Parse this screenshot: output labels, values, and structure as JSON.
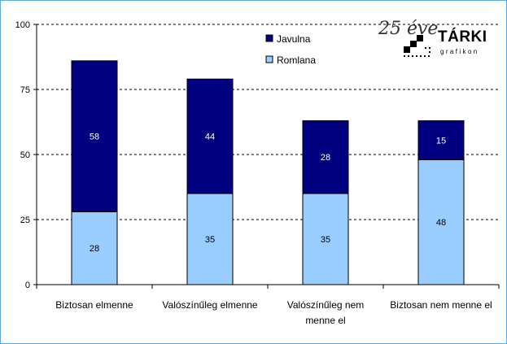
{
  "chart_data": {
    "type": "bar",
    "stacked": true,
    "categories": [
      [
        "Biztosan elmenne"
      ],
      [
        "Valószínűleg elmenne"
      ],
      [
        "Valószínűleg nem",
        "menne el"
      ],
      [
        "Biztosan nem menne el"
      ]
    ],
    "series": [
      {
        "name": "Romlana",
        "color": "#99ccff",
        "values": [
          28,
          35,
          35,
          48
        ]
      },
      {
        "name": "Javulna",
        "color": "#000080",
        "values": [
          58,
          44,
          28,
          15
        ]
      }
    ],
    "legend_order": [
      "Javulna",
      "Romlana"
    ],
    "label_colors": {
      "Romlana": "#000000",
      "Javulna": "#ffffff"
    },
    "ylim": [
      0,
      100
    ],
    "yticks": [
      0,
      25,
      50,
      75,
      100
    ],
    "grid": true,
    "legend_position": "top-right",
    "title": "",
    "xlabel": "",
    "ylabel": ""
  },
  "logo": {
    "year_text": "25 éve",
    "name": "TÁRKI",
    "subtitle": "grafikon"
  }
}
